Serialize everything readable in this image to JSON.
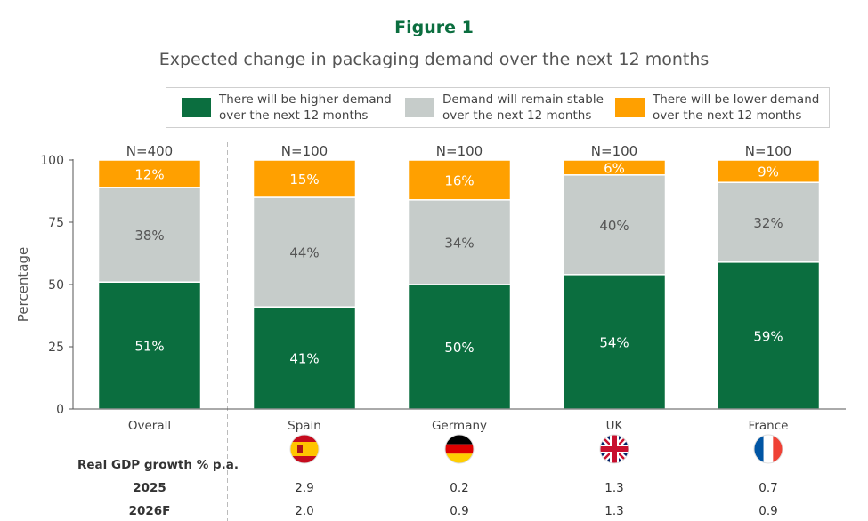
{
  "figure_label": "Figure 1",
  "chart_data": {
    "type": "bar",
    "stacked": true,
    "title": "Expected change in packaging demand over the next 12 months",
    "ylabel": "Percentage",
    "ylim": [
      0,
      100
    ],
    "yticks": [
      "0",
      "25",
      "50",
      "75",
      "100"
    ],
    "categories": [
      "Overall",
      "Spain",
      "Germany",
      "UK",
      "France"
    ],
    "n_labels": [
      "N=400",
      "N=100",
      "N=100",
      "N=100",
      "N=100"
    ],
    "series": [
      {
        "name": "There will be higher demand over the next 12 months",
        "name_lines": [
          "There will be higher demand",
          "over the next 12 months"
        ],
        "color": "#0b6e3f",
        "label_color": "#ffffff",
        "values": [
          51,
          41,
          50,
          54,
          59
        ],
        "labels": [
          "51%",
          "41%",
          "50%",
          "54%",
          "59%"
        ]
      },
      {
        "name": "Demand will remain stable over the next 12 months",
        "name_lines": [
          "Demand will remain stable",
          "over the next 12 months"
        ],
        "color": "#c6ccca",
        "label_color": "#555555",
        "values": [
          38,
          44,
          34,
          40,
          32
        ],
        "labels": [
          "38%",
          "44%",
          "34%",
          "40%",
          "32%"
        ]
      },
      {
        "name": "There will be lower demand over the next 12 months",
        "name_lines": [
          "There will be lower demand",
          "over the next 12 months"
        ],
        "color": "#ffa000",
        "label_color": "#ffffff",
        "values": [
          12,
          15,
          16,
          6,
          9
        ],
        "labels": [
          "12%",
          "15%",
          "16%",
          "6%",
          "9%"
        ]
      }
    ],
    "legend_position": "top",
    "grid": false
  },
  "gdp_table": {
    "header": "Real GDP growth % p.a.",
    "rows": [
      {
        "label": "2025",
        "values": [
          "",
          "2.9",
          "0.2",
          "1.3",
          "0.7"
        ]
      },
      {
        "label": "2026F",
        "values": [
          "",
          "2.0",
          "0.9",
          "1.3",
          "0.9"
        ]
      }
    ]
  },
  "flag_icons": [
    "",
    "spain-flag-icon",
    "germany-flag-icon",
    "uk-flag-icon",
    "france-flag-icon"
  ],
  "colors": {
    "accent": "#0b6e3f",
    "divider": "#bbbbbb"
  }
}
